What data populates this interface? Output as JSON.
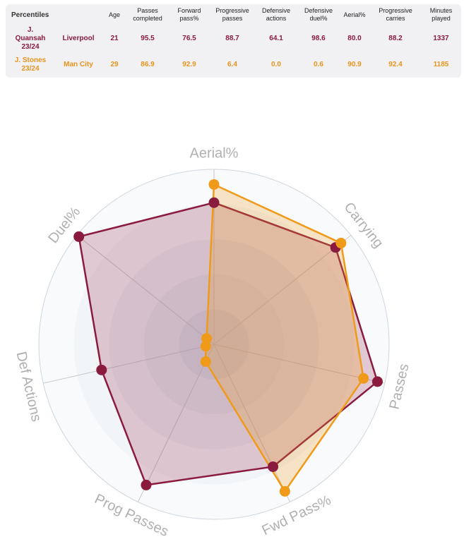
{
  "table": {
    "header_label": "Percentiles",
    "columns": [
      "Age",
      "Passes\ncompleted",
      "Forward\npass%",
      "Progressive\npasses",
      "Defensive\nactions",
      "Defensive\nduel%",
      "Aerial%",
      "Progressive\ncarries",
      "Minutes\nplayed"
    ],
    "rows": [
      {
        "player": "J.\nQuansah\n23/24",
        "team": "Liverpool",
        "values": [
          "21",
          "95.5",
          "76.5",
          "88.7",
          "64.1",
          "98.6",
          "80.0",
          "88.2",
          "1337"
        ]
      },
      {
        "player": "J. Stones\n23/24",
        "team": "Man City",
        "values": [
          "29",
          "86.9",
          "92.9",
          "6.4",
          "0.0",
          "0.6",
          "90.9",
          "92.4",
          "1185"
        ]
      }
    ]
  },
  "chart_data": {
    "type": "radar",
    "axes": [
      "Aerial%",
      "Carrying",
      "Passes",
      "Fwd Pass%",
      "Prog Passes",
      "Def Actions",
      "Duel%"
    ],
    "range": [
      0,
      100
    ],
    "series": [
      {
        "name": "J. Quansah 23/24",
        "color": "#8b1a3f",
        "values": [
          80.0,
          88.2,
          95.5,
          76.5,
          88.7,
          64.1,
          98.6
        ]
      },
      {
        "name": "J. Stones 23/24",
        "color": "#f09a1a",
        "values": [
          90.9,
          92.4,
          86.9,
          92.9,
          6.4,
          0.0,
          0.6
        ]
      }
    ]
  }
}
